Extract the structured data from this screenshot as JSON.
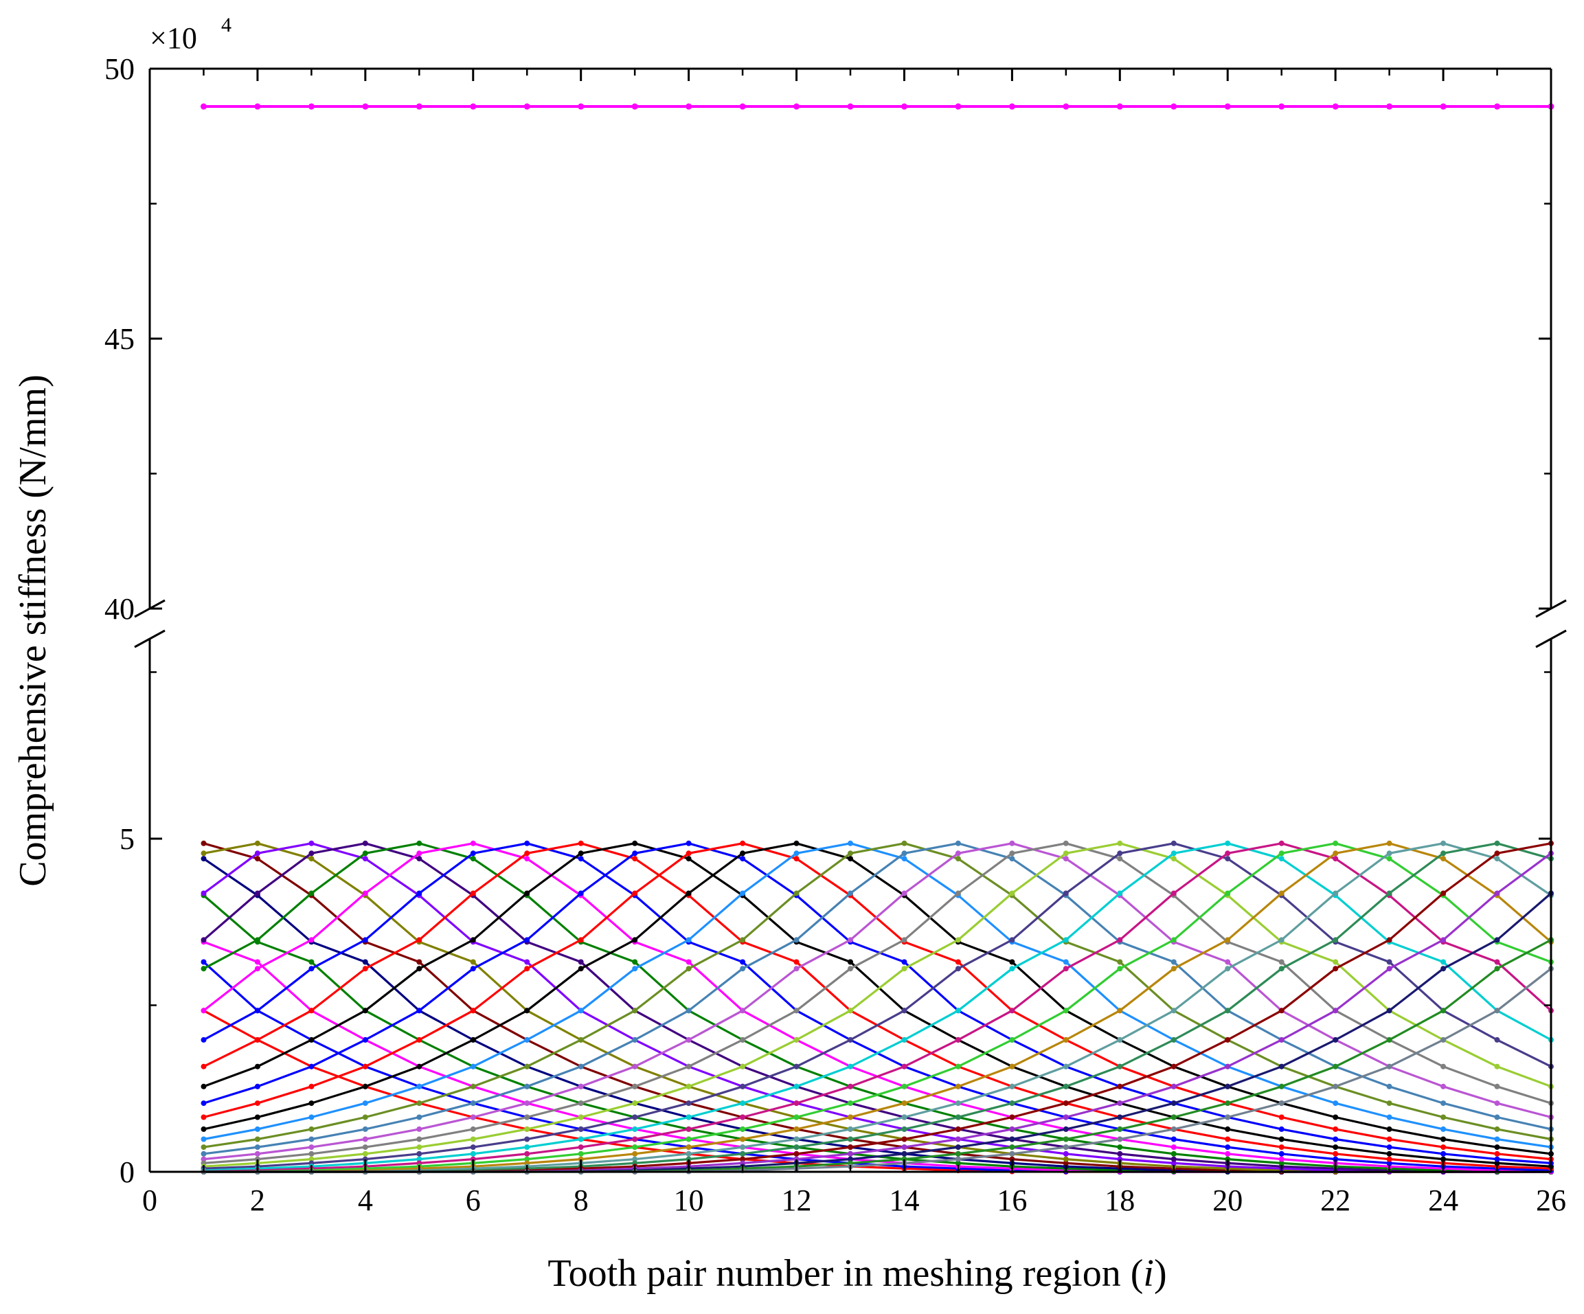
{
  "chart_data": {
    "type": "line",
    "xlabel_main": "Tooth pair number in meshing region (",
    "xlabel_var": "i",
    "xlabel_end": ")",
    "ylabel": "Comprehensive stiffness (N/mm)",
    "y_multiplier": "×10",
    "y_multiplier_exp": "4",
    "xlim": [
      0,
      26
    ],
    "ylim_lower": [
      0,
      8
    ],
    "ylim_upper": [
      40,
      50
    ],
    "axis_break": true,
    "x_ticks": [
      "0",
      "2",
      "4",
      "6",
      "8",
      "10",
      "12",
      "14",
      "16",
      "18",
      "20",
      "22",
      "24",
      "26"
    ],
    "y_ticks_lower": [
      "0",
      "5"
    ],
    "y_ticks_upper": [
      "40",
      "45",
      "50"
    ],
    "grid": false,
    "legend": "none",
    "series_x": [
      1,
      26
    ],
    "bell_profile": {
      "peak": 4.93,
      "rise": [
        4.93,
        4.78,
        4.18,
        3.48,
        3.05,
        2.42,
        1.98,
        1.58,
        1.28,
        1.03,
        0.82,
        0.64,
        0.49,
        0.37,
        0.27,
        0.19,
        0.13,
        0.08,
        0.05,
        0.02,
        0.005
      ],
      "fall": [
        4.93,
        4.7,
        4.15,
        3.45,
        3.15,
        2.42,
        1.98,
        1.58,
        1.28,
        1.03,
        0.82,
        0.64,
        0.49,
        0.37,
        0.27,
        0.19,
        0.13,
        0.08,
        0.05,
        0.02,
        0.005
      ]
    },
    "series": [
      {
        "peak_x": -4,
        "color": "#FF0000"
      },
      {
        "peak_x": -3,
        "color": "#0000FF"
      },
      {
        "peak_x": -2,
        "color": "#FF00FF"
      },
      {
        "peak_x": -1,
        "color": "#008000"
      },
      {
        "peak_x": 0,
        "color": "#000080"
      },
      {
        "peak_x": 1,
        "color": "#800000"
      },
      {
        "peak_x": 2,
        "color": "#808000"
      },
      {
        "peak_x": 3,
        "color": "#8000FF"
      },
      {
        "peak_x": 4,
        "color": "#400080"
      },
      {
        "peak_x": 5,
        "color": "#008000"
      },
      {
        "peak_x": 6,
        "color": "#FF00FF"
      },
      {
        "peak_x": 7,
        "color": "#0000FF"
      },
      {
        "peak_x": 8,
        "color": "#FF0000"
      },
      {
        "peak_x": 9,
        "color": "#000000"
      },
      {
        "peak_x": 10,
        "color": "#0000FF"
      },
      {
        "peak_x": 11,
        "color": "#FF0000"
      },
      {
        "peak_x": 12,
        "color": "#000000"
      },
      {
        "peak_x": 13,
        "color": "#1E90FF"
      },
      {
        "peak_x": 14,
        "color": "#6B8E23"
      },
      {
        "peak_x": 15,
        "color": "#4682B4"
      },
      {
        "peak_x": 16,
        "color": "#BA55D3"
      },
      {
        "peak_x": 17,
        "color": "#808080"
      },
      {
        "peak_x": 18,
        "color": "#9ACD32"
      },
      {
        "peak_x": 19,
        "color": "#483D8B"
      },
      {
        "peak_x": 20,
        "color": "#00CED1"
      },
      {
        "peak_x": 21,
        "color": "#C71585"
      },
      {
        "peak_x": 22,
        "color": "#32CD32"
      },
      {
        "peak_x": 23,
        "color": "#B8860B"
      },
      {
        "peak_x": 24,
        "color": "#5F9EA0"
      },
      {
        "peak_x": 25,
        "color": "#2E8B57"
      },
      {
        "peak_x": 26,
        "color": "#8B0000"
      },
      {
        "peak_x": 27,
        "color": "#9932CC"
      },
      {
        "peak_x": 28,
        "color": "#191970"
      },
      {
        "peak_x": 29,
        "color": "#228B22"
      },
      {
        "peak_x": 30,
        "color": "#708090"
      }
    ],
    "total_series": {
      "values_x": [
        1,
        26
      ],
      "value": 49.3,
      "color": "#FF00FF"
    }
  }
}
